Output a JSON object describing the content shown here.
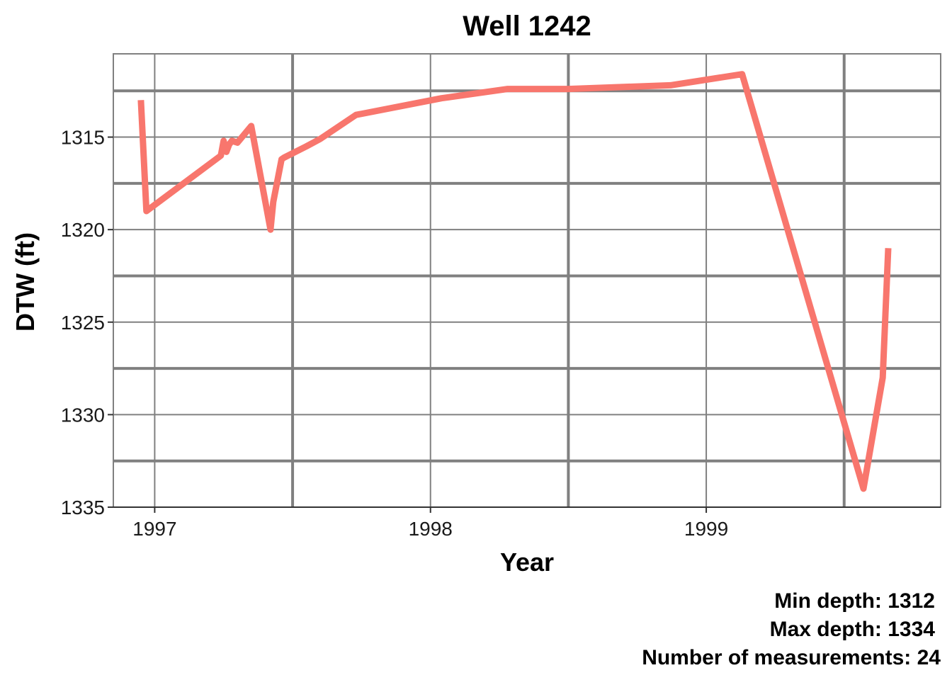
{
  "chart_data": {
    "type": "line",
    "title": "Well 1242",
    "xlabel": "Year",
    "ylabel": "DTW (ft)",
    "y_reversed": true,
    "xlim": [
      1996.85,
      1999.85
    ],
    "ylim": [
      1310.5,
      1335
    ],
    "x_ticks": [
      1997,
      1998,
      1999
    ],
    "x_tick_labels": [
      "1997",
      "1998",
      "1999"
    ],
    "x_minor_ticks": [
      1997.5,
      1998.5,
      1999.5
    ],
    "y_ticks": [
      1315,
      1320,
      1325,
      1330,
      1335
    ],
    "y_tick_labels": [
      "1315",
      "1320",
      "1325",
      "1330",
      "1335"
    ],
    "y_minor_ticks": [
      1312.5,
      1317.5,
      1322.5,
      1327.5,
      1332.5
    ],
    "grid": true,
    "line_color": "#F8766D",
    "x": [
      1996.95,
      1996.97,
      1997.24,
      1997.25,
      1997.26,
      1997.27,
      1997.28,
      1997.3,
      1997.35,
      1997.42,
      1997.43,
      1997.46,
      1997.47,
      1997.55,
      1997.6,
      1997.73,
      1998.04,
      1998.28,
      1998.5,
      1998.87,
      1999.13,
      1999.57,
      1999.64,
      1999.66
    ],
    "y": [
      1313.0,
      1319.0,
      1316.0,
      1315.2,
      1315.8,
      1315.4,
      1315.2,
      1315.3,
      1314.4,
      1320.0,
      1318.5,
      1316.2,
      1316.1,
      1315.5,
      1315.1,
      1313.8,
      1312.9,
      1312.4,
      1312.4,
      1312.2,
      1311.6,
      1334.0,
      1328.0,
      1321.0
    ]
  },
  "caption": {
    "min_depth": "Min depth: 1312",
    "max_depth": "Max depth: 1334",
    "count": "Number of measurements: 24"
  }
}
